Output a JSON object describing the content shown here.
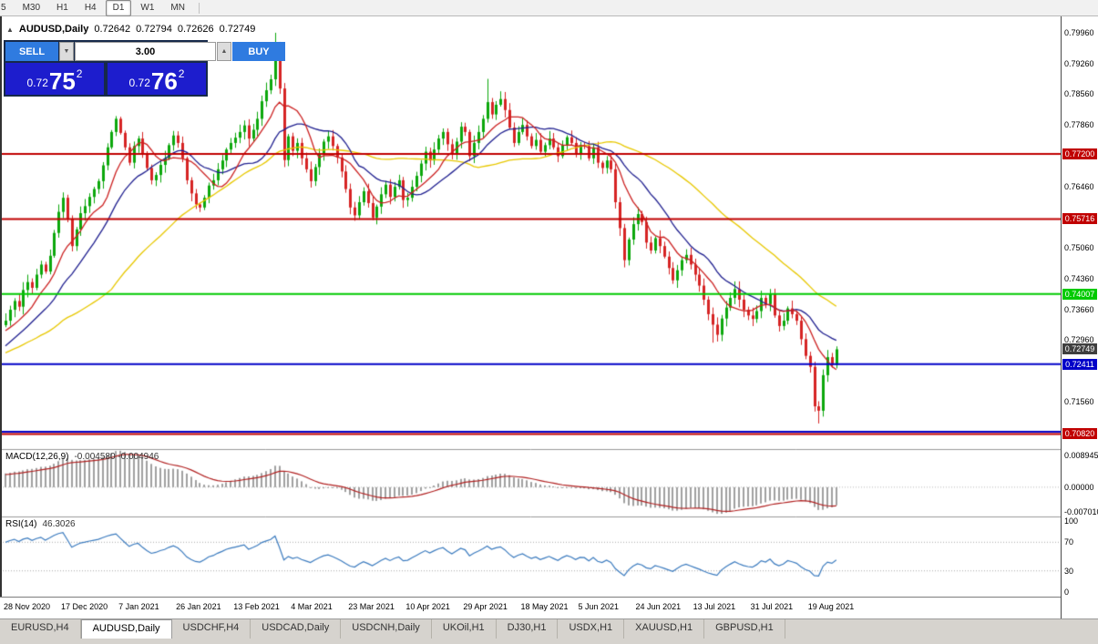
{
  "toolbar": {
    "active": "D1",
    "periods": [
      "5",
      "M30",
      "H1",
      "H4",
      "D1",
      "W1",
      "MN"
    ]
  },
  "chart_header": {
    "collapse_icon": "▲",
    "symbol": "AUDUSD,Daily",
    "open": "0.72642",
    "high": "0.72794",
    "low": "0.72626",
    "close": "0.72749"
  },
  "trade_panel": {
    "sell_label": "SELL",
    "buy_label": "BUY",
    "volume": "3.00",
    "spinner_down": "▼",
    "spinner_up": "▲",
    "sell_price": {
      "prefix": "0.72",
      "big": "75",
      "sup": "2"
    },
    "buy_price": {
      "prefix": "0.72",
      "big": "76",
      "sup": "2"
    }
  },
  "tabs": {
    "active_index": 1,
    "items": [
      "EURUSD,H4",
      "AUDUSD,Daily",
      "USDCHF,H4",
      "USDCAD,Daily",
      "USDCNH,Daily",
      "UKOil,H1",
      "DJ30,H1",
      "USDX,H1",
      "XAUUSD,H1",
      "GBPUSD,H1"
    ]
  },
  "chart_data": {
    "type": "candlestick",
    "symbol": "AUDUSD",
    "timeframe": "Daily",
    "price_range": [
      0.7058,
      0.8025
    ],
    "x_labels": [
      "28 Nov 2020",
      "17 Dec 2020",
      "7 Jan 2021",
      "26 Jan 2021",
      "13 Feb 2021",
      "4 Mar 2021",
      "23 Mar 2021",
      "10 Apr 2021",
      "29 Apr 2021",
      "18 May 2021",
      "5 Jun 2021",
      "24 Jun 2021",
      "13 Jul 2021",
      "31 Jul 2021",
      "19 Aug 2021"
    ],
    "label_every_bars": 13,
    "pre_closes": [
      0.716,
      0.7185,
      0.717,
      0.7205,
      0.723,
      0.7215,
      0.7248,
      0.7262,
      0.724,
      0.7268,
      0.729,
      0.7275,
      0.7302,
      0.7318,
      0.7295,
      0.7322,
      0.734,
      0.7312,
      0.7298,
      0.733
    ],
    "closes": [
      0.734,
      0.7365,
      0.7385,
      0.7372,
      0.741,
      0.7428,
      0.7415,
      0.7445,
      0.7468,
      0.7452,
      0.7488,
      0.754,
      0.7588,
      0.762,
      0.7572,
      0.751,
      0.7548,
      0.7585,
      0.7601,
      0.7622,
      0.764,
      0.7658,
      0.7694,
      0.7735,
      0.777,
      0.78,
      0.7768,
      0.7735,
      0.77,
      0.7738,
      0.7755,
      0.772,
      0.7688,
      0.766,
      0.7672,
      0.7695,
      0.771,
      0.774,
      0.7762,
      0.7745,
      0.771,
      0.766,
      0.763,
      0.7605,
      0.7598,
      0.762,
      0.7648,
      0.766,
      0.7685,
      0.7705,
      0.773,
      0.7745,
      0.7757,
      0.777,
      0.7785,
      0.7755,
      0.7775,
      0.78,
      0.784,
      0.7865,
      0.789,
      0.796,
      0.7869,
      0.7706,
      0.776,
      0.7727,
      0.7745,
      0.771,
      0.7685,
      0.7658,
      0.769,
      0.772,
      0.7748,
      0.776,
      0.7738,
      0.7712,
      0.768,
      0.764,
      0.7598,
      0.758,
      0.761,
      0.7635,
      0.7608,
      0.7575,
      0.76,
      0.7628,
      0.765,
      0.7622,
      0.7645,
      0.766,
      0.7615,
      0.762,
      0.7645,
      0.767,
      0.7698,
      0.7725,
      0.7705,
      0.773,
      0.7755,
      0.777,
      0.7742,
      0.7718,
      0.7748,
      0.7782,
      0.777,
      0.7715,
      0.7745,
      0.777,
      0.78,
      0.7838,
      0.781,
      0.7832,
      0.7845,
      0.782,
      0.778,
      0.7745,
      0.777,
      0.7786,
      0.776,
      0.7738,
      0.7752,
      0.7725,
      0.774,
      0.7755,
      0.7735,
      0.7715,
      0.774,
      0.7758,
      0.7745,
      0.7722,
      0.774,
      0.7738,
      0.771,
      0.7735,
      0.77,
      0.7688,
      0.7705,
      0.7685,
      0.761,
      0.7551,
      0.7478,
      0.7525,
      0.756,
      0.7583,
      0.7565,
      0.7518,
      0.75,
      0.7528,
      0.751,
      0.7486,
      0.746,
      0.7432,
      0.7455,
      0.7478,
      0.749,
      0.7468,
      0.7445,
      0.742,
      0.7388,
      0.7355,
      0.7331,
      0.7308,
      0.7345,
      0.737,
      0.7392,
      0.7412,
      0.7388,
      0.7365,
      0.7352,
      0.7344,
      0.7362,
      0.7392,
      0.7378,
      0.7402,
      0.7352,
      0.7328,
      0.734,
      0.7368,
      0.7355,
      0.734,
      0.7298,
      0.726,
      0.7235,
      0.7145,
      0.7135,
      0.7216,
      0.7257,
      0.7239,
      0.72749
    ],
    "wick_overrides": {
      "61": {
        "high": 0.7996
      },
      "109": {
        "high": 0.7891
      },
      "160": {
        "low": 0.729
      },
      "184": {
        "low": 0.7106
      }
    },
    "candle_up_color": "#0ca80c",
    "candle_down_color": "#d62424",
    "moving_averages": [
      {
        "period": 9,
        "color": "#cc2020"
      },
      {
        "period": 18,
        "color": "#202090"
      },
      {
        "period": 45,
        "color": "#e8c800"
      }
    ],
    "hlines": [
      {
        "value": 0.772,
        "label": "0.77200",
        "color": "#c00000"
      },
      {
        "value": 0.75716,
        "label": "0.75716",
        "color": "#c00000"
      },
      {
        "value": 0.74007,
        "label": "0.74007",
        "color": "#00ca00"
      },
      {
        "value": 0.72411,
        "label": "0.72411",
        "color": "#0000c8"
      },
      {
        "value": 0.7087,
        "label": null,
        "color": "#0000c8"
      },
      {
        "value": 0.7082,
        "label": "0.70820",
        "color": "#c00000"
      }
    ],
    "current_price_tag": {
      "value": 0.72749,
      "label": "0.72749",
      "color": "#3f3f3f"
    },
    "price_axis_ticks": [
      "0.79960",
      "0.79260",
      "0.78560",
      "0.77860",
      "0.76460",
      "0.75060",
      "0.74360",
      "0.73660",
      "0.72960",
      "0.71560"
    ],
    "macd": {
      "label": "MACD(12,26,9)",
      "values_text": "-0.004580 -0.004946",
      "fast": 12,
      "slow": 26,
      "signal_period": 9,
      "range": [
        -0.0075,
        0.0095
      ],
      "scale_labels": [
        {
          "text": "0.008945",
          "value": 0.008945
        },
        {
          "text": "0.00000",
          "value": 0
        },
        {
          "text": "-0.007010",
          "value": -0.00701
        }
      ],
      "histogram_color": "#a0a0a0",
      "signal_color": "#b22222"
    },
    "rsi": {
      "label": "RSI(14)",
      "value_text": "46.3026",
      "period": 14,
      "levels": [
        {
          "text": "100",
          "value": 100
        },
        {
          "text": "70",
          "value": 70
        },
        {
          "text": "30",
          "value": 30
        },
        {
          "text": "0",
          "value": 0
        }
      ],
      "level_lines": [
        70,
        30
      ],
      "line_color": "#3b7bbf"
    }
  }
}
